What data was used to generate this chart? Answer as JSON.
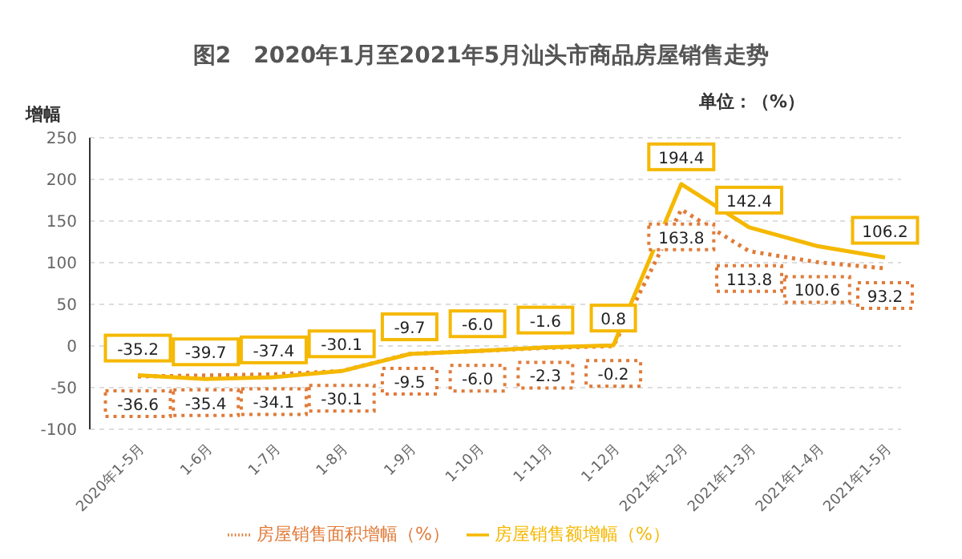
{
  "chart_data": {
    "type": "line",
    "title": "图2　2020年1月至2021年5月汕头市商品房屋销售走势",
    "ylabel": "增幅",
    "annotations": [
      "单位：（%）"
    ],
    "categories": [
      "2020年1-5月",
      "1-6月",
      "1-7月",
      "1-8月",
      "1-9月",
      "1-10月",
      "1-11月",
      "1-12月",
      "2021年1-2月",
      "2021年1-3月",
      "2021年1-4月",
      "2021年1-5月"
    ],
    "series": [
      {
        "name": "房屋销售面积增幅（%）",
        "color": "#e07b39",
        "line_style": "dotted",
        "values": [
          -36.6,
          -35.4,
          -34.1,
          -30.1,
          -9.5,
          -6.0,
          -2.3,
          -0.2,
          163.8,
          113.8,
          100.6,
          93.2
        ],
        "value_labels": [
          "-36.6",
          "-35.4",
          "-34.1",
          "-30.1",
          "-9.5",
          "-6.0",
          "-2.3",
          "-0.2",
          "163.8",
          "113.8",
          "100.6",
          "93.2"
        ]
      },
      {
        "name": "房屋销售额增幅（%）",
        "color": "#f5b800",
        "line_style": "solid",
        "values": [
          -35.2,
          -39.7,
          -37.4,
          -30.1,
          -9.7,
          -6.0,
          -1.6,
          0.8,
          194.4,
          142.4,
          120,
          106.2
        ],
        "value_labels": [
          "-35.2",
          "-39.7",
          "-37.4",
          "-30.1",
          "-9.7",
          "-6.0",
          "-1.6",
          "0.8",
          "194.4",
          "142.4",
          null,
          "106.2"
        ]
      }
    ],
    "ylim": [
      -100,
      250
    ],
    "yticks": [
      -100,
      -50,
      0,
      50,
      100,
      150,
      200,
      250
    ],
    "grid": "y",
    "legend": "bottom",
    "marker": "none"
  }
}
